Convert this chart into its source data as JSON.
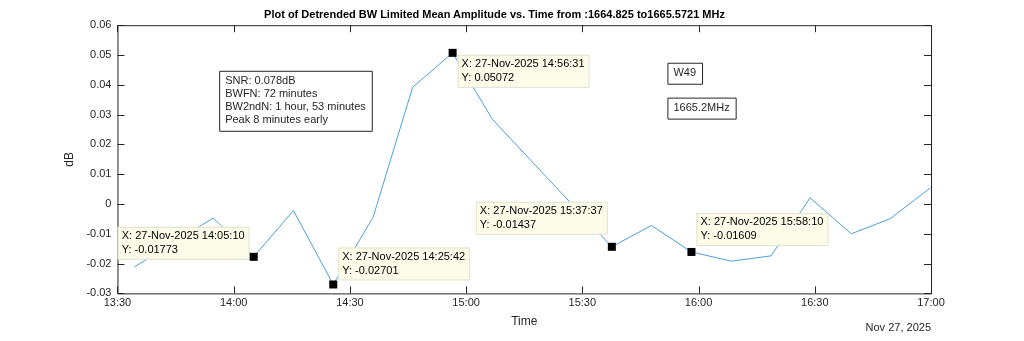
{
  "chart_data": {
    "type": "line",
    "title": "Plot of Detrended BW Limited Mean Amplitude vs. Time from :1664.825 to1665.5721 MHz",
    "xlabel": "Time",
    "ylabel": "dB",
    "series": [
      {
        "color": "#4d9fd9",
        "x": [
          13.573,
          13.912,
          14.0861,
          14.257,
          14.4283,
          14.6,
          14.77,
          14.9419,
          15.113,
          15.6269,
          15.797,
          15.9694,
          16.142,
          16.312,
          16.48,
          16.657,
          16.823,
          16.997
        ],
        "values": [
          -0.0211,
          -0.0047,
          -0.01773,
          -0.0022,
          -0.02701,
          -0.0044,
          0.0392,
          0.05072,
          0.0284,
          -0.01437,
          -0.0072,
          -0.01609,
          -0.0192,
          -0.0174,
          0.0021,
          -0.01,
          -0.005,
          0.0054
        ]
      }
    ],
    "xlim": [
      13.5,
      17
    ],
    "xticks": [
      {
        "value": 13.5,
        "label": "13:30"
      },
      {
        "value": 14,
        "label": "14:00"
      },
      {
        "value": 14.5,
        "label": "14:30"
      },
      {
        "value": 15,
        "label": "15:00"
      },
      {
        "value": 15.5,
        "label": "15:30"
      },
      {
        "value": 16,
        "label": "16:00"
      },
      {
        "value": 16.5,
        "label": "16:30"
      },
      {
        "value": 17,
        "label": "17:00"
      }
    ],
    "ylim": [
      -0.03,
      0.06
    ],
    "yticks": [
      -0.03,
      -0.02,
      -0.01,
      0,
      0.01,
      0.02,
      0.03,
      0.04,
      0.05,
      0.06
    ],
    "grid": false,
    "legend": false,
    "marker": "none",
    "line_style": "solid",
    "annotations": [
      "SNR: 0.078dB\nBWFN: 72 minutes\nBW2ndN: 1 hour, 53 minutes\nPeak 8 minutes early",
      "W49",
      "1665.2MHz",
      "Nov 27, 2025",
      {
        "text": "X: 27-Nov-2025 14:05:10\nY: -0.01773",
        "x": 14.0861,
        "y": -0.01773
      },
      {
        "text": "X: 27-Nov-2025 14:25:42\nY: -0.02701",
        "x": 14.4283,
        "y": -0.02701
      },
      {
        "text": "X: 27-Nov-2025 14:56:31\nY: 0.05072",
        "x": 14.9419,
        "y": 0.05072
      },
      {
        "text": "X: 27-Nov-2025 15:37:37\nY: -0.01437",
        "x": 15.6269,
        "y": -0.01437
      },
      {
        "text": "X: 27-Nov-2025 15:58:10\nY: -0.01609",
        "x": 15.9694,
        "y": -0.01609
      }
    ]
  }
}
